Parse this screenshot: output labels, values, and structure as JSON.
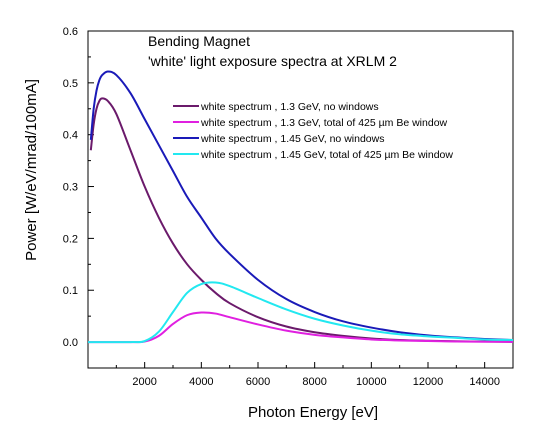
{
  "chart_data": {
    "type": "line",
    "annotation": {
      "line1": "Bending Magnet",
      "line2": "'white' light exposure spectra at XRLM 2"
    },
    "xlabel": "Photon Energy [eV]",
    "ylabel": "Power [W/eV/mrad/100mA]",
    "xlim": [
      0,
      15000
    ],
    "ylim": [
      -0.05,
      0.6
    ],
    "xticks": [
      2000,
      4000,
      6000,
      8000,
      10000,
      12000,
      14000
    ],
    "xtick_labels": [
      "2000",
      "4000",
      "6000",
      "8000",
      "10000",
      "12000",
      "14000"
    ],
    "yticks": [
      0.0,
      0.1,
      0.2,
      0.3,
      0.4,
      0.5,
      0.6
    ],
    "ytick_labels": [
      "0.0",
      "0.1",
      "0.2",
      "0.3",
      "0.4",
      "0.5",
      "0.6"
    ],
    "grid": false,
    "legend_position": "top-right",
    "series": [
      {
        "name": "white spectrum , 1.3 GeV, no windows",
        "color": "#6b1a6b",
        "x": [
          100,
          200,
          300,
          400,
          500,
          700,
          1000,
          1500,
          2000,
          2500,
          3000,
          3500,
          4000,
          4500,
          5000,
          6000,
          7000,
          8000,
          9000,
          10000,
          11000,
          12000,
          13000,
          14000,
          15000
        ],
        "y": [
          0.37,
          0.42,
          0.45,
          0.465,
          0.47,
          0.465,
          0.44,
          0.37,
          0.3,
          0.24,
          0.19,
          0.15,
          0.12,
          0.095,
          0.075,
          0.048,
          0.03,
          0.019,
          0.012,
          0.007,
          0.004,
          0.0025,
          0.0015,
          0.001,
          0.0005
        ]
      },
      {
        "name": "white spectrum , 1.3 GeV, total of 425 µm Be window",
        "color": "#e020e0",
        "x": [
          0,
          1500,
          2000,
          2500,
          3000,
          3500,
          4000,
          4500,
          5000,
          6000,
          7000,
          8000,
          9000,
          10000,
          11000,
          12000,
          13000,
          14000,
          15000
        ],
        "y": [
          0.0,
          0.0,
          0.001,
          0.012,
          0.035,
          0.052,
          0.057,
          0.055,
          0.048,
          0.034,
          0.022,
          0.014,
          0.009,
          0.005,
          0.003,
          0.002,
          0.0012,
          0.0007,
          0.0004
        ]
      },
      {
        "name": "white spectrum , 1.45 GeV, no windows",
        "color": "#1a1ab8",
        "x": [
          100,
          200,
          300,
          400,
          500,
          700,
          1000,
          1500,
          2000,
          2500,
          3000,
          3500,
          4000,
          4500,
          5000,
          6000,
          7000,
          8000,
          9000,
          10000,
          11000,
          12000,
          13000,
          14000,
          15000
        ],
        "y": [
          0.39,
          0.45,
          0.485,
          0.505,
          0.515,
          0.522,
          0.515,
          0.48,
          0.43,
          0.38,
          0.33,
          0.28,
          0.24,
          0.2,
          0.17,
          0.12,
          0.083,
          0.058,
          0.04,
          0.028,
          0.019,
          0.013,
          0.009,
          0.006,
          0.004
        ]
      },
      {
        "name": "white spectrum , 1.45 GeV, total of 425 µm Be window",
        "color": "#22e8f0",
        "x": [
          0,
          1500,
          2000,
          2500,
          3000,
          3500,
          4000,
          4500,
          5000,
          6000,
          7000,
          8000,
          9000,
          10000,
          11000,
          12000,
          13000,
          14000,
          15000
        ],
        "y": [
          0.0,
          0.0,
          0.002,
          0.02,
          0.058,
          0.095,
          0.112,
          0.115,
          0.108,
          0.085,
          0.063,
          0.045,
          0.032,
          0.022,
          0.015,
          0.011,
          0.008,
          0.005,
          0.004
        ]
      }
    ]
  }
}
